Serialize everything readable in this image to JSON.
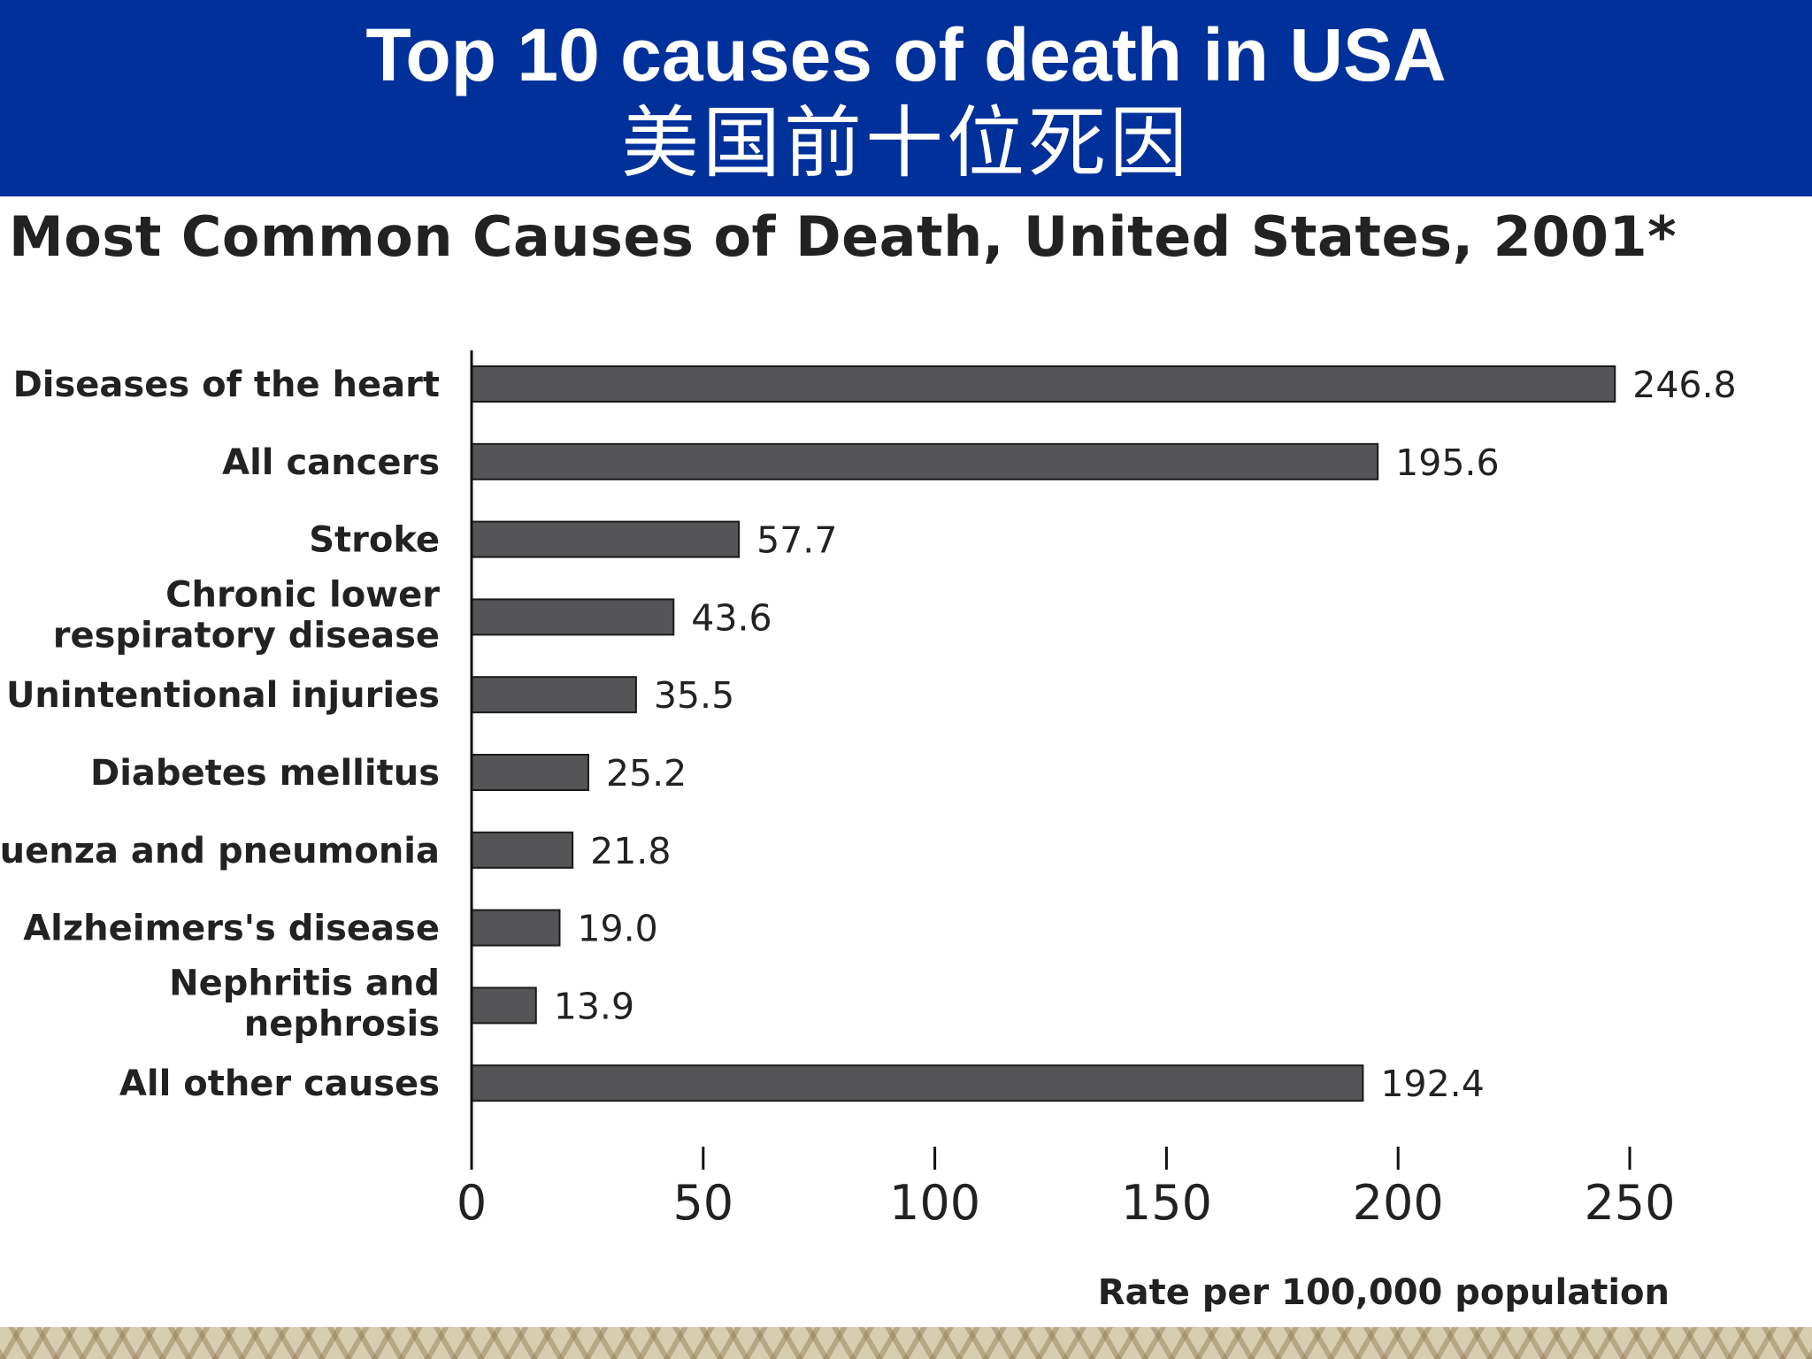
{
  "header": {
    "title_en": "Top 10 causes of death in USA",
    "title_zh": "美国前十位死因"
  },
  "chart_data": {
    "type": "bar",
    "orientation": "horizontal",
    "title": "Most Common Causes of Death, United States, 2001*",
    "xlabel": "Rate per 100,000 population",
    "ylabel": "",
    "xlim": [
      0,
      280
    ],
    "xticks": [
      0,
      50,
      100,
      150,
      200,
      250
    ],
    "grid": false,
    "bar_color": "#555558",
    "categories": [
      [
        "Diseases of the heart"
      ],
      [
        "All cancers"
      ],
      [
        "Stroke"
      ],
      [
        "Chronic lower",
        "respiratory disease"
      ],
      [
        "Unintentional injuries"
      ],
      [
        "Diabetes mellitus"
      ],
      [
        "Influenza and pneumonia"
      ],
      [
        "Alzheimers's disease"
      ],
      [
        "Nephritis and",
        "nephrosis"
      ],
      [
        "All other causes"
      ]
    ],
    "values": [
      246.8,
      195.6,
      57.7,
      43.6,
      35.5,
      25.2,
      21.8,
      19.0,
      13.9,
      192.4
    ],
    "value_labels": [
      "246.8",
      "195.6",
      "57.7",
      "43.6",
      "35.5",
      "25.2",
      "21.8",
      "19.0",
      "13.9",
      "192.4"
    ]
  },
  "colors": {
    "header_band": "#00309a",
    "header_text": "#ffffff",
    "text": "#222222"
  }
}
